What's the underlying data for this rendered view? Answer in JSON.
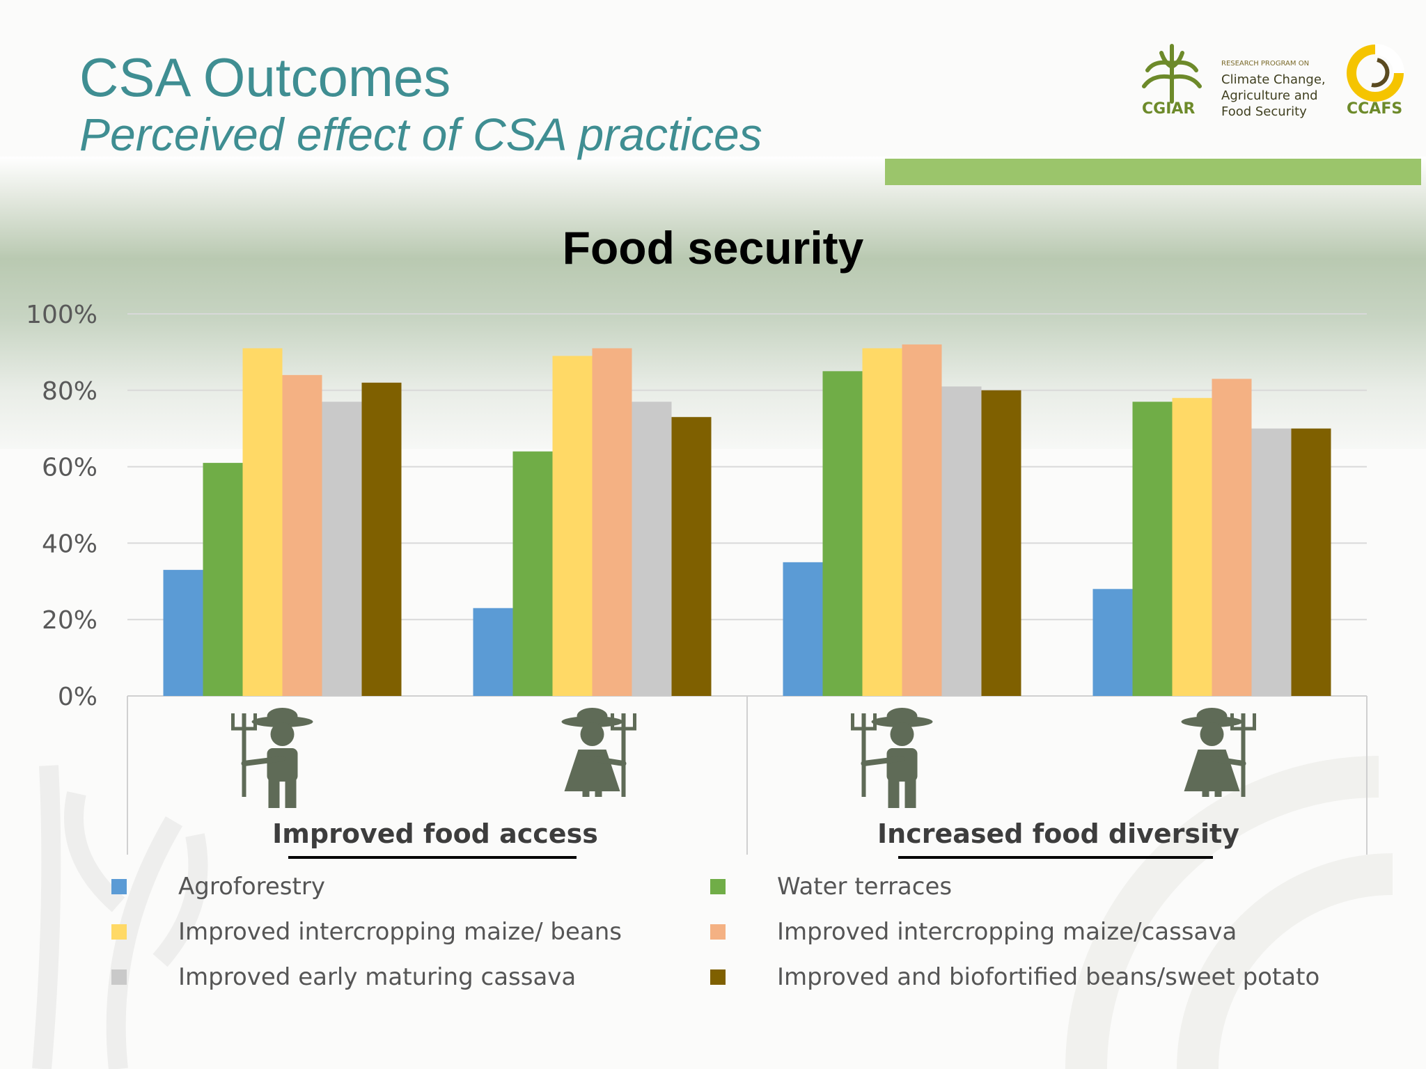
{
  "header": {
    "title": "CSA Outcomes",
    "subtitle": "Perceived effect of CSA practices"
  },
  "logos": {
    "cgiar": "CGIAR",
    "program_small": "RESEARCH PROGRAM ON",
    "program_line1": "Climate Change,",
    "program_line2": "Agriculture and",
    "program_line3": "Food Security",
    "ccafs": "CCAFS"
  },
  "colors": {
    "accent_teal": "#3f8e92",
    "accent_green_bar": "#9bc56b"
  },
  "chart_data": {
    "type": "bar",
    "title": "Food security",
    "ylim": [
      0,
      100
    ],
    "yticks": [
      "0%",
      "20%",
      "40%",
      "60%",
      "80%",
      "100%"
    ],
    "grid": true,
    "legend_placement": "bottom",
    "groups": [
      {
        "label": "Improved food access",
        "categories": [
          "male farmer",
          "female farmer"
        ]
      },
      {
        "label": "Increased food diversity",
        "categories": [
          "male farmer",
          "female farmer"
        ]
      }
    ],
    "categories": [
      "male farmer",
      "female farmer",
      "male farmer",
      "female farmer"
    ],
    "series": [
      {
        "name": "Agroforestry",
        "color": "#5b9bd5",
        "values": [
          33,
          23,
          35,
          28
        ]
      },
      {
        "name": "Water terraces",
        "color": "#70ad47",
        "values": [
          61,
          64,
          85,
          77
        ]
      },
      {
        "name": "Improved intercropping maize/ beans",
        "color": "#ffd966",
        "values": [
          91,
          89,
          91,
          78
        ]
      },
      {
        "name": "Improved intercropping maize/cassava",
        "color": "#f4b183",
        "values": [
          84,
          91,
          92,
          83
        ]
      },
      {
        "name": "Improved early maturing cassava",
        "color": "#c9c9c9",
        "values": [
          77,
          77,
          81,
          70
        ]
      },
      {
        "name": "Improved and biofortified beans/sweet potato",
        "color": "#7f6000",
        "values": [
          82,
          73,
          80,
          70
        ]
      }
    ]
  }
}
